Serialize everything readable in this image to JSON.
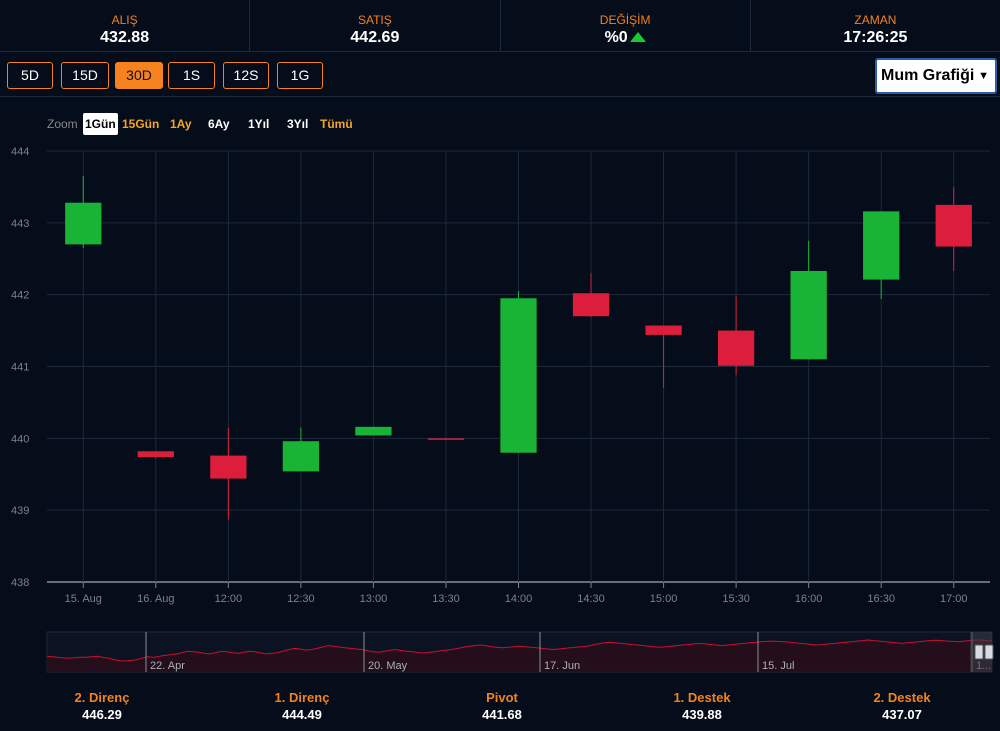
{
  "stats": [
    {
      "label": "ALIŞ",
      "value": "432.88"
    },
    {
      "label": "SATIŞ",
      "value": "442.69"
    },
    {
      "label": "DEĞİŞİM",
      "value": "%0",
      "trend": "up"
    },
    {
      "label": "ZAMAN",
      "value": "17:26:25"
    }
  ],
  "periods": [
    "5D",
    "15D",
    "30D",
    "1S",
    "12S",
    "1G"
  ],
  "active_period": "30D",
  "chart_type_select": {
    "value": "Mum Grafiği",
    "arrow": "▼"
  },
  "zoom": {
    "label": "Zoom",
    "buttons": [
      "1Gün",
      "15Gün",
      "1Ay",
      "6Ay",
      "1Yıl",
      "3Yıl",
      "Tümü"
    ],
    "active": "1Gün"
  },
  "colors": {
    "up": "#19b336",
    "down": "#dc1e3c",
    "accent": "#f5821f",
    "background": "#050c1a",
    "navigator_line": "#c8102e"
  },
  "chart_data": {
    "type": "candlestick",
    "y_ticks": [
      "438",
      "439",
      "440",
      "441",
      "442",
      "443",
      "444"
    ],
    "ylim": [
      438,
      444
    ],
    "x_labels": [
      "15. Aug",
      "16. Aug",
      "12:00",
      "12:30",
      "13:00",
      "13:30",
      "14:00",
      "14:30",
      "15:00",
      "15:30",
      "16:00",
      "16:30",
      "17:00"
    ],
    "candles": [
      {
        "open": 442.7,
        "high": 443.65,
        "low": 442.65,
        "close": 443.28
      },
      {
        "open": 439.82,
        "high": 439.82,
        "low": 439.72,
        "close": 439.74
      },
      {
        "open": 439.76,
        "high": 440.15,
        "low": 438.87,
        "close": 439.44
      },
      {
        "open": 439.54,
        "high": 440.15,
        "low": 439.54,
        "close": 439.96
      },
      {
        "open": 440.04,
        "high": 440.16,
        "low": 440.04,
        "close": 440.16
      },
      {
        "open": 440.0,
        "high": 440.0,
        "low": 439.98,
        "close": 439.98
      },
      {
        "open": 439.8,
        "high": 442.05,
        "low": 439.8,
        "close": 441.95
      },
      {
        "open": 442.02,
        "high": 442.3,
        "low": 441.69,
        "close": 441.7
      },
      {
        "open": 441.57,
        "high": 441.57,
        "low": 440.7,
        "close": 441.44
      },
      {
        "open": 441.5,
        "high": 441.98,
        "low": 440.88,
        "close": 441.01
      },
      {
        "open": 441.1,
        "high": 442.75,
        "low": 441.1,
        "close": 442.33
      },
      {
        "open": 442.21,
        "high": 443.16,
        "low": 441.94,
        "close": 443.16
      },
      {
        "open": 443.25,
        "high": 443.5,
        "low": 442.33,
        "close": 442.67
      }
    ],
    "grid": true,
    "navigator": {
      "labels": [
        "22. Apr",
        "20. May",
        "17. Jun",
        "15. Jul",
        "1..."
      ],
      "values": [
        0.42,
        0.4,
        0.38,
        0.36,
        0.35,
        0.37,
        0.39,
        0.38,
        0.4,
        0.42,
        0.38,
        0.35,
        0.3,
        0.26,
        0.25,
        0.27,
        0.3,
        0.36,
        0.4,
        0.38,
        0.42,
        0.45,
        0.48,
        0.5,
        0.55,
        0.6,
        0.58,
        0.56,
        0.52,
        0.5,
        0.55,
        0.6,
        0.58,
        0.55,
        0.52,
        0.56,
        0.6,
        0.58,
        0.54,
        0.5,
        0.52,
        0.55,
        0.6,
        0.66,
        0.7,
        0.68,
        0.64,
        0.66,
        0.7,
        0.75,
        0.8,
        0.78,
        0.75,
        0.72,
        0.7,
        0.68,
        0.66,
        0.62,
        0.58,
        0.56,
        0.6,
        0.64,
        0.66,
        0.62,
        0.6,
        0.58,
        0.55,
        0.54,
        0.56,
        0.58,
        0.62,
        0.64,
        0.66,
        0.7,
        0.74,
        0.78,
        0.8,
        0.82,
        0.8,
        0.76,
        0.74,
        0.72,
        0.74,
        0.76,
        0.78,
        0.76,
        0.74,
        0.72,
        0.7,
        0.68,
        0.66,
        0.68,
        0.7,
        0.72,
        0.74,
        0.76,
        0.78,
        0.82,
        0.86,
        0.9,
        0.92,
        0.9,
        0.88,
        0.86,
        0.84,
        0.82,
        0.8,
        0.78,
        0.76,
        0.74,
        0.76,
        0.78,
        0.8,
        0.82,
        0.84,
        0.86,
        0.88,
        0.86,
        0.84,
        0.82,
        0.8,
        0.82,
        0.84,
        0.86,
        0.88,
        0.9,
        0.92,
        0.94,
        0.95,
        0.96,
        0.95,
        0.94,
        0.92,
        0.9,
        0.88,
        0.86,
        0.84,
        0.82,
        0.84,
        0.86,
        0.88,
        0.9,
        0.92,
        0.94,
        0.96,
        0.98,
        1.0,
        0.98,
        0.96,
        0.94,
        0.92,
        0.9,
        0.88,
        0.9,
        0.92,
        0.94,
        0.96,
        0.98,
        0.99,
        0.98,
        0.96,
        0.95,
        0.94,
        0.96,
        0.98,
        1.0,
        1.0,
        0.98,
        0.97
      ]
    }
  },
  "pivots": [
    {
      "label": "2. Direnç",
      "value": "446.29"
    },
    {
      "label": "1. Direnç",
      "value": "444.49"
    },
    {
      "label": "Pivot",
      "value": "441.68"
    },
    {
      "label": "1. Destek",
      "value": "439.88"
    },
    {
      "label": "2. Destek",
      "value": "437.07"
    }
  ]
}
